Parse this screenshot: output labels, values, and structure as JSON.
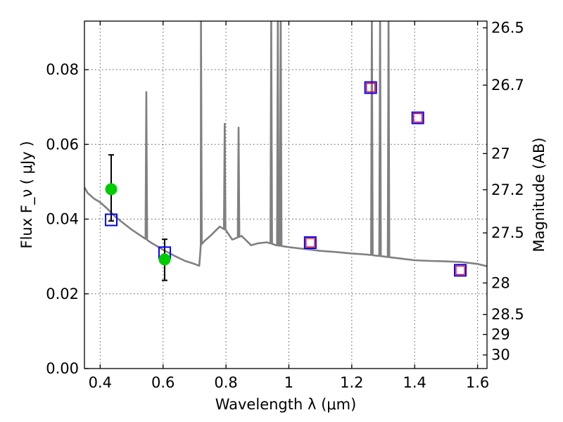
{
  "chart_data": {
    "type": "scatter",
    "xlabel": "Wavelength  λ (μm)",
    "ylabel": "Flux  F_ν  ( μJy )",
    "y2label": "Magnitude (AB)",
    "xlim": [
      0.35,
      1.63
    ],
    "ylim": [
      0.0,
      0.093
    ],
    "grid": true,
    "x_ticks": [
      {
        "value": 0.4,
        "label": "0.4"
      },
      {
        "value": 0.6,
        "label": "0.6"
      },
      {
        "value": 0.8,
        "label": "0.8"
      },
      {
        "value": 1.0,
        "label": "1"
      },
      {
        "value": 1.2,
        "label": "1.2"
      },
      {
        "value": 1.4,
        "label": "1.4"
      },
      {
        "value": 1.6,
        "label": "1.6"
      }
    ],
    "y_ticks": [
      {
        "value": 0.0,
        "label": "0.00"
      },
      {
        "value": 0.02,
        "label": "0.02"
      },
      {
        "value": 0.04,
        "label": "0.04"
      },
      {
        "value": 0.06,
        "label": "0.06"
      },
      {
        "value": 0.08,
        "label": "0.08"
      }
    ],
    "magnitude_ticks": [
      {
        "mag": 26.5,
        "label": "26.5"
      },
      {
        "mag": 26.7,
        "label": "26.7"
      },
      {
        "mag": 27.0,
        "label": "27"
      },
      {
        "mag": 27.2,
        "label": "27.2"
      },
      {
        "mag": 27.5,
        "label": "27.5"
      },
      {
        "mag": 28.0,
        "label": "28"
      },
      {
        "mag": 28.5,
        "label": "28.5"
      },
      {
        "mag": 29.0,
        "label": "29"
      },
      {
        "mag": 30.0,
        "label": "30"
      }
    ],
    "series": [
      {
        "kind": "template_spectrum",
        "color": "#808080",
        "continuum": [
          [
            0.35,
            0.0485
          ],
          [
            0.36,
            0.047
          ],
          [
            0.38,
            0.0455
          ],
          [
            0.4,
            0.0445
          ],
          [
            0.42,
            0.043
          ],
          [
            0.45,
            0.0405
          ],
          [
            0.48,
            0.0385
          ],
          [
            0.5,
            0.0372
          ],
          [
            0.53,
            0.0355
          ],
          [
            0.56,
            0.0338
          ],
          [
            0.6,
            0.0318
          ],
          [
            0.64,
            0.03
          ],
          [
            0.67,
            0.0288
          ],
          [
            0.7,
            0.028
          ],
          [
            0.715,
            0.0275
          ],
          [
            0.72,
            0.033
          ],
          [
            0.73,
            0.034
          ],
          [
            0.75,
            0.0355
          ],
          [
            0.78,
            0.038
          ],
          [
            0.8,
            0.037
          ],
          [
            0.82,
            0.0345
          ],
          [
            0.85,
            0.0355
          ],
          [
            0.88,
            0.033
          ],
          [
            0.9,
            0.0335
          ],
          [
            0.93,
            0.0338
          ],
          [
            0.96,
            0.033
          ],
          [
            1.0,
            0.0325
          ],
          [
            1.05,
            0.032
          ],
          [
            1.1,
            0.0315
          ],
          [
            1.15,
            0.0312
          ],
          [
            1.2,
            0.0308
          ],
          [
            1.25,
            0.0305
          ],
          [
            1.3,
            0.03
          ],
          [
            1.35,
            0.0295
          ],
          [
            1.4,
            0.029
          ],
          [
            1.45,
            0.0288
          ],
          [
            1.5,
            0.0287
          ],
          [
            1.55,
            0.0285
          ],
          [
            1.6,
            0.028
          ],
          [
            1.63,
            0.0274
          ]
        ],
        "emission_lines": [
          {
            "x": 0.5468,
            "peak": 0.074
          },
          {
            "x": 0.7205,
            "peak": 0.094
          },
          {
            "x": 0.796,
            "peak": 0.0655
          },
          {
            "x": 0.84,
            "peak": 0.0645
          },
          {
            "x": 0.944,
            "peak": 0.094
          },
          {
            "x": 0.965,
            "peak": 0.094
          },
          {
            "x": 0.974,
            "peak": 0.094
          },
          {
            "x": 1.264,
            "peak": 0.094
          },
          {
            "x": 1.29,
            "peak": 0.094
          },
          {
            "x": 1.317,
            "peak": 0.094
          }
        ]
      },
      {
        "kind": "observed_photometry",
        "marker": "circle",
        "color": "#00cc00",
        "points": [
          {
            "x": 0.435,
            "y": 0.048,
            "err_low": 0.0395,
            "err_high": 0.0572
          },
          {
            "x": 0.605,
            "y": 0.0292,
            "err_low": 0.0236,
            "err_high": 0.0346
          }
        ]
      },
      {
        "kind": "model_photometry",
        "marker": "open-square",
        "color": "#0000ff",
        "points": [
          {
            "x": 0.435,
            "y": 0.0398
          },
          {
            "x": 0.605,
            "y": 0.031
          },
          {
            "x": 1.068,
            "y": 0.0337
          },
          {
            "x": 1.26,
            "y": 0.0752
          },
          {
            "x": 1.41,
            "y": 0.0671
          },
          {
            "x": 1.545,
            "y": 0.0263
          }
        ]
      },
      {
        "kind": "model_photometry_inner",
        "marker": "open-square",
        "color": "#ff0000",
        "points": [
          {
            "x": 1.068,
            "y": 0.0337
          },
          {
            "x": 1.26,
            "y": 0.0752
          },
          {
            "x": 1.41,
            "y": 0.0671
          },
          {
            "x": 1.545,
            "y": 0.0263
          }
        ]
      }
    ]
  }
}
